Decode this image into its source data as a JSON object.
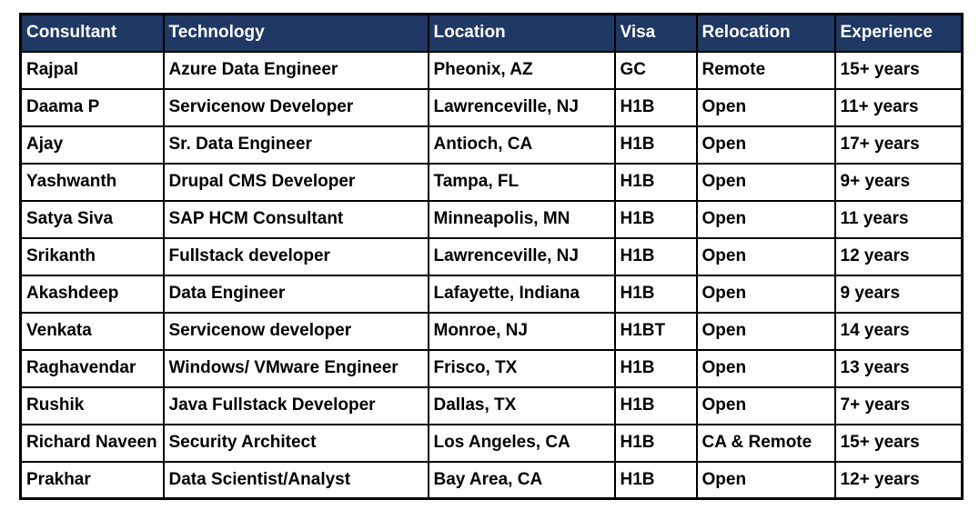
{
  "colors": {
    "header_bg": "#1F3864",
    "header_text": "#FFFFFF",
    "body_text": "#000000",
    "border": "#000000",
    "page_bg": "#FFFFFF"
  },
  "table": {
    "columns": [
      {
        "key": "consultant",
        "label": "Consultant"
      },
      {
        "key": "technology",
        "label": "Technology"
      },
      {
        "key": "location",
        "label": "Location"
      },
      {
        "key": "visa",
        "label": "Visa"
      },
      {
        "key": "relocation",
        "label": "Relocation"
      },
      {
        "key": "experience",
        "label": "Experience"
      }
    ],
    "rows": [
      [
        "Rajpal",
        "Azure Data Engineer",
        "Pheonix, AZ",
        "GC",
        "Remote",
        "15+ years"
      ],
      [
        "Daama P",
        "Servicenow Developer",
        "Lawrenceville, NJ",
        "H1B",
        "Open",
        "11+ years"
      ],
      [
        "Ajay",
        "Sr. Data Engineer",
        "Antioch, CA",
        "H1B",
        "Open",
        "17+ years"
      ],
      [
        "Yashwanth",
        "Drupal CMS Developer",
        "Tampa, FL",
        "H1B",
        "Open",
        "9+ years"
      ],
      [
        "Satya Siva",
        "SAP HCM Consultant",
        "Minneapolis, MN",
        "H1B",
        "Open",
        "11 years"
      ],
      [
        "Srikanth",
        "Fullstack developer",
        "Lawrenceville, NJ",
        "H1B",
        "Open",
        "12 years"
      ],
      [
        "Akashdeep",
        "Data Engineer",
        "Lafayette, Indiana",
        "H1B",
        "Open",
        "9 years"
      ],
      [
        "Venkata",
        "Servicenow developer",
        "Monroe, NJ",
        "H1BT",
        "Open",
        "14 years"
      ],
      [
        "Raghavendar",
        "Windows/ VMware Engineer",
        "Frisco, TX",
        "H1B",
        "Open",
        "13 years"
      ],
      [
        "Rushik",
        "Java Fullstack Developer",
        "Dallas, TX",
        "H1B",
        "Open",
        "7+ years"
      ],
      [
        "Richard Naveen",
        "Security Architect",
        "Los Angeles, CA",
        "H1B",
        "CA & Remote",
        "15+ years"
      ],
      [
        "Prakhar",
        "Data Scientist/Analyst",
        "Bay Area, CA",
        "H1B",
        "Open",
        "12+ years"
      ]
    ]
  }
}
